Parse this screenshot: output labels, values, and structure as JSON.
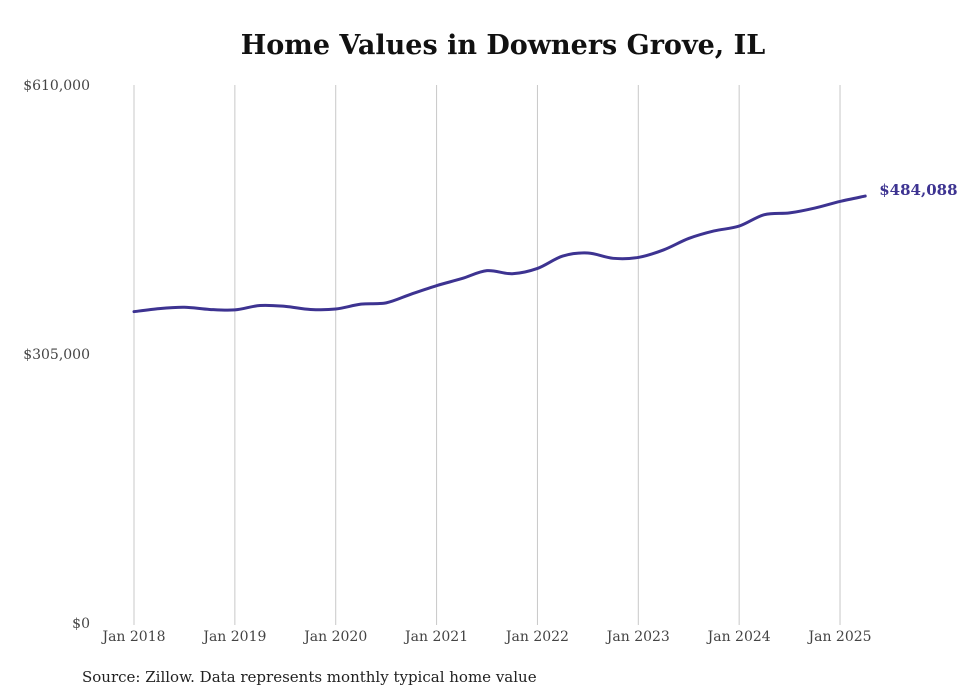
{
  "colors": {
    "line": "#3d3391",
    "grid": "#c8c8c8",
    "text": "#444444"
  },
  "chart_data": {
    "type": "line",
    "title": "Home Values in Downers Grove, IL",
    "xlabel": "",
    "ylabel": "",
    "ylim": [
      0,
      610000
    ],
    "yticks": [
      {
        "value": 0,
        "label": "$0"
      },
      {
        "value": 305000,
        "label": "$305,000"
      },
      {
        "value": 610000,
        "label": "$610,000"
      }
    ],
    "xticks": [
      {
        "date": "2018-01",
        "label": "Jan 2018"
      },
      {
        "date": "2019-01",
        "label": "Jan 2019"
      },
      {
        "date": "2020-01",
        "label": "Jan 2020"
      },
      {
        "date": "2021-01",
        "label": "Jan 2021"
      },
      {
        "date": "2022-01",
        "label": "Jan 2022"
      },
      {
        "date": "2023-01",
        "label": "Jan 2023"
      },
      {
        "date": "2024-01",
        "label": "Jan 2024"
      },
      {
        "date": "2025-01",
        "label": "Jan 2025"
      }
    ],
    "grid": "vertical",
    "end_label": "$484,088",
    "series": [
      {
        "color": "#3d3391",
        "points": [
          {
            "x": "2018-01",
            "y": 353000
          },
          {
            "x": "2018-04",
            "y": 356500
          },
          {
            "x": "2018-07",
            "y": 358000
          },
          {
            "x": "2018-10",
            "y": 355500
          },
          {
            "x": "2019-01",
            "y": 355000
          },
          {
            "x": "2019-04",
            "y": 360000
          },
          {
            "x": "2019-07",
            "y": 359000
          },
          {
            "x": "2019-10",
            "y": 355500
          },
          {
            "x": "2020-01",
            "y": 356000
          },
          {
            "x": "2020-04",
            "y": 361500
          },
          {
            "x": "2020-07",
            "y": 363000
          },
          {
            "x": "2020-10",
            "y": 373000
          },
          {
            "x": "2021-01",
            "y": 382500
          },
          {
            "x": "2021-04",
            "y": 390500
          },
          {
            "x": "2021-07",
            "y": 399500
          },
          {
            "x": "2021-10",
            "y": 396000
          },
          {
            "x": "2022-01",
            "y": 402000
          },
          {
            "x": "2022-04",
            "y": 416000
          },
          {
            "x": "2022-07",
            "y": 419500
          },
          {
            "x": "2022-10",
            "y": 413500
          },
          {
            "x": "2023-01",
            "y": 414500
          },
          {
            "x": "2023-04",
            "y": 423000
          },
          {
            "x": "2023-07",
            "y": 436000
          },
          {
            "x": "2023-10",
            "y": 444500
          },
          {
            "x": "2024-01",
            "y": 450000
          },
          {
            "x": "2024-04",
            "y": 463000
          },
          {
            "x": "2024-07",
            "y": 465000
          },
          {
            "x": "2024-10",
            "y": 470500
          },
          {
            "x": "2025-01",
            "y": 478000
          },
          {
            "x": "2025-04",
            "y": 484088
          }
        ]
      }
    ]
  },
  "footer": {
    "source": "Source: Zillow. Data represents monthly typical home value"
  }
}
